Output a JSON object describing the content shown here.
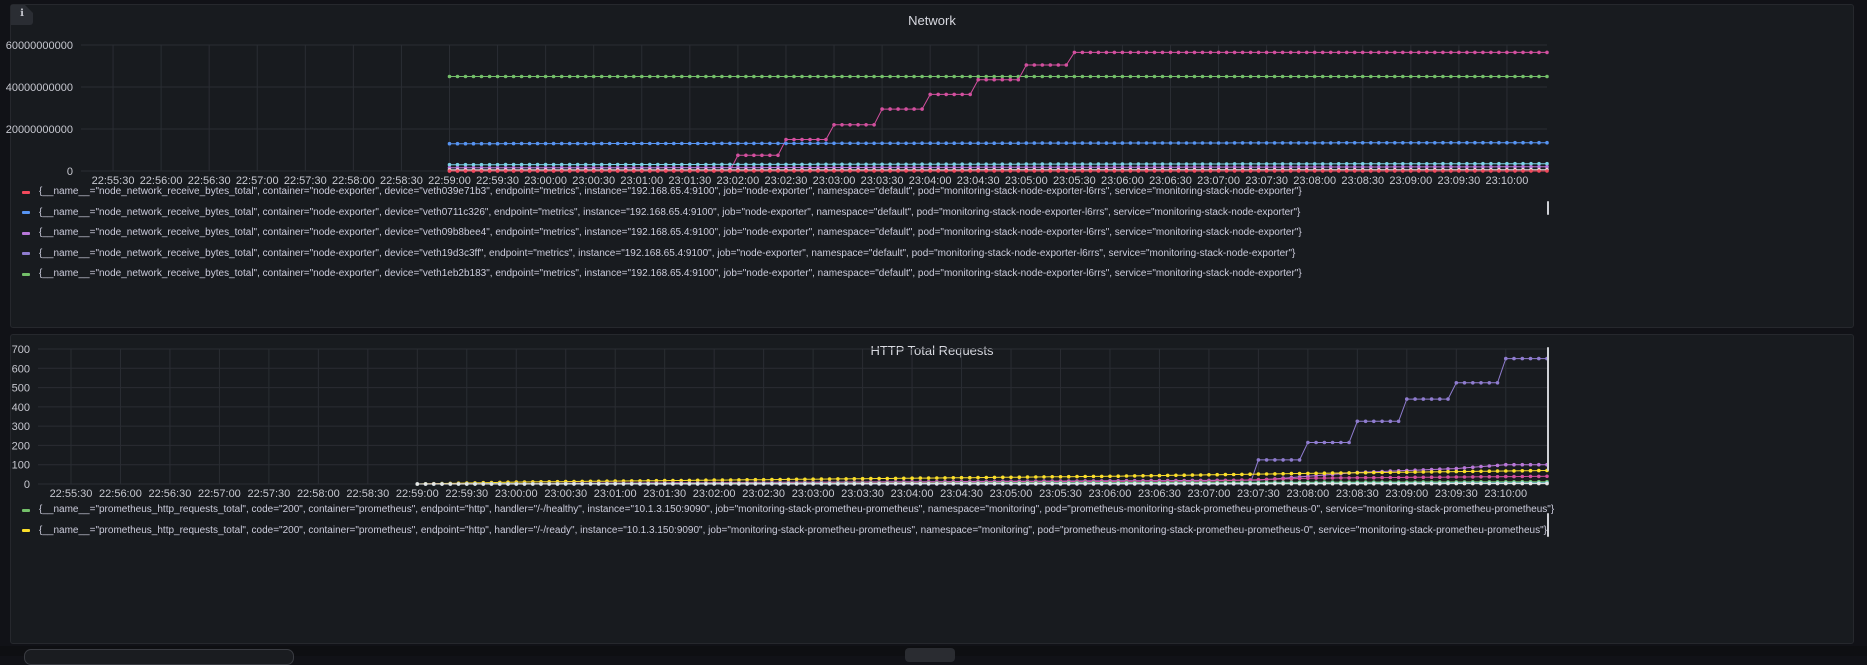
{
  "colors": {
    "bg": "#111217",
    "panel": "#181b1f",
    "grid": "#2a2d33",
    "red": "#f2495c",
    "blue": "#5794f2",
    "purple": "#b877d9",
    "violet": "#8f7ccf",
    "green": "#73bf69",
    "yellow": "#fade2a",
    "pink": "#d24f9e",
    "white": "#e6e6e6",
    "cyan": "#7ad2e6"
  },
  "info_icon": "ℹ",
  "network": {
    "title": "Network",
    "legend": [
      {
        "label": "{__name__=\"node_network_receive_bytes_total\", container=\"node-exporter\", device=\"veth039e71b3\", endpoint=\"metrics\", instance=\"192.168.65.4:9100\", job=\"node-exporter\", namespace=\"default\", pod=\"monitoring-stack-node-exporter-l6rrs\", service=\"monitoring-stack-node-exporter\"}",
        "color": "#f2495c"
      },
      {
        "label": "{__name__=\"node_network_receive_bytes_total\", container=\"node-exporter\", device=\"veth0711c326\", endpoint=\"metrics\", instance=\"192.168.65.4:9100\", job=\"node-exporter\", namespace=\"default\", pod=\"monitoring-stack-node-exporter-l6rrs\", service=\"monitoring-stack-node-exporter\"}",
        "color": "#5794f2"
      },
      {
        "label": "{__name__=\"node_network_receive_bytes_total\", container=\"node-exporter\", device=\"veth09b8bee4\", endpoint=\"metrics\", instance=\"192.168.65.4:9100\", job=\"node-exporter\", namespace=\"default\", pod=\"monitoring-stack-node-exporter-l6rrs\", service=\"monitoring-stack-node-exporter\"}",
        "color": "#b877d9"
      },
      {
        "label": "{__name__=\"node_network_receive_bytes_total\", container=\"node-exporter\", device=\"veth19d3c3ff\", endpoint=\"metrics\", instance=\"192.168.65.4:9100\", job=\"node-exporter\", namespace=\"default\", pod=\"monitoring-stack-node-exporter-l6rrs\", service=\"monitoring-stack-node-exporter\"}",
        "color": "#8f7ccf"
      },
      {
        "label": "{__name__=\"node_network_receive_bytes_total\", container=\"node-exporter\", device=\"veth1eb2b183\", endpoint=\"metrics\", instance=\"192.168.65.4:9100\", job=\"node-exporter\", namespace=\"default\", pod=\"monitoring-stack-node-exporter-l6rrs\", service=\"monitoring-stack-node-exporter\"}",
        "color": "#73bf69"
      }
    ]
  },
  "http": {
    "title": "HTTP Total Requests",
    "legend": [
      {
        "label": "{__name__=\"prometheus_http_requests_total\", code=\"200\", container=\"prometheus\", endpoint=\"http\", handler=\"/-/healthy\", instance=\"10.1.3.150:9090\", job=\"monitoring-stack-prometheu-prometheus\", namespace=\"monitoring\", pod=\"prometheus-monitoring-stack-prometheu-prometheus-0\", service=\"monitoring-stack-prometheu-prometheus\"}",
        "color": "#73bf69"
      },
      {
        "label": "{__name__=\"prometheus_http_requests_total\", code=\"200\", container=\"prometheus\", endpoint=\"http\", handler=\"/-/ready\", instance=\"10.1.3.150:9090\", job=\"monitoring-stack-prometheu-prometheus\", namespace=\"monitoring\", pod=\"prometheus-monitoring-stack-prometheu-prometheus-0\", service=\"monitoring-stack-prometheu-prometheus\"}",
        "color": "#fade2a"
      }
    ]
  },
  "chart_data": [
    {
      "type": "line",
      "title": "Network",
      "x_ticks": [
        "22:55:30",
        "22:56:00",
        "22:56:30",
        "22:57:00",
        "22:57:30",
        "22:58:00",
        "22:58:30",
        "22:59:00",
        "22:59:30",
        "23:00:00",
        "23:00:30",
        "23:01:00",
        "23:01:30",
        "23:02:00",
        "23:02:30",
        "23:03:00",
        "23:03:30",
        "23:04:00",
        "23:04:30",
        "23:05:00",
        "23:05:30",
        "23:06:00",
        "23:06:30",
        "23:07:00",
        "23:07:30",
        "23:08:00",
        "23:08:30",
        "23:09:00",
        "23:09:30",
        "23:10:00"
      ],
      "xlim": [
        "22:55:10",
        "23:10:25"
      ],
      "y_ticks": [
        "0",
        "20000000000",
        "40000000000",
        "60000000000"
      ],
      "ylim": [
        0,
        60000000000
      ],
      "grid": true,
      "legend_position": "bottom",
      "series": [
        {
          "color": "#73bf69",
          "x": [
            "22:59:00",
            "23:10:25"
          ],
          "y": [
            45000000000,
            45000000000
          ]
        },
        {
          "color": "#d24f9e",
          "x": [
            "22:59:00",
            "23:01:55",
            "23:02:00",
            "23:02:25",
            "23:02:30",
            "23:02:55",
            "23:03:00",
            "23:03:25",
            "23:03:30",
            "23:03:55",
            "23:04:00",
            "23:04:25",
            "23:04:30",
            "23:04:55",
            "23:05:00",
            "23:05:25",
            "23:05:30",
            "23:10:25"
          ],
          "y": [
            0,
            0,
            7500000000,
            7500000000,
            15000000000,
            15000000000,
            22000000000,
            22000000000,
            29500000000,
            29500000000,
            36500000000,
            36500000000,
            43500000000,
            43500000000,
            50500000000,
            50500000000,
            56500000000,
            56500000000
          ]
        },
        {
          "color": "#5794f2",
          "x": [
            "22:59:00",
            "23:10:25"
          ],
          "y": [
            13000000000,
            13500000000
          ]
        },
        {
          "color": "#7ad2e6",
          "x": [
            "22:59:00",
            "23:10:25"
          ],
          "y": [
            3000000000,
            3500000000
          ]
        },
        {
          "color": "#b877d9",
          "x": [
            "22:59:00",
            "23:10:25"
          ],
          "y": [
            1500000000,
            2000000000
          ]
        },
        {
          "color": "#e6e6e6",
          "x": [
            "22:59:00",
            "23:10:25"
          ],
          "y": [
            500000000,
            600000000
          ]
        },
        {
          "color": "#f2495c",
          "x": [
            "22:59:00",
            "23:10:25"
          ],
          "y": [
            0,
            0
          ]
        }
      ]
    },
    {
      "type": "line",
      "title": "HTTP Total Requests",
      "x_ticks": [
        "22:55:30",
        "22:56:00",
        "22:56:30",
        "22:57:00",
        "22:57:30",
        "22:58:00",
        "22:58:30",
        "22:59:00",
        "22:59:30",
        "23:00:00",
        "23:00:30",
        "23:01:00",
        "23:01:30",
        "23:02:00",
        "23:02:30",
        "23:03:00",
        "23:03:30",
        "23:04:00",
        "23:04:30",
        "23:05:00",
        "23:05:30",
        "23:06:00",
        "23:06:30",
        "23:07:00",
        "23:07:30",
        "23:08:00",
        "23:08:30",
        "23:09:00",
        "23:09:30",
        "23:10:00"
      ],
      "xlim": [
        "22:55:10",
        "23:10:25"
      ],
      "y_ticks": [
        "0",
        "100",
        "200",
        "300",
        "400",
        "500",
        "600",
        "700"
      ],
      "ylim": [
        0,
        700
      ],
      "grid": true,
      "legend_position": "bottom",
      "series": [
        {
          "color": "#8f7ccf",
          "x": [
            "22:59:00",
            "23:07:25",
            "23:07:30",
            "23:07:55",
            "23:08:00",
            "23:08:25",
            "23:08:30",
            "23:08:55",
            "23:09:00",
            "23:09:25",
            "23:09:30",
            "23:09:55",
            "23:10:00",
            "23:10:25"
          ],
          "y": [
            0,
            0,
            125,
            125,
            215,
            215,
            325,
            325,
            440,
            440,
            525,
            525,
            650,
            650
          ]
        },
        {
          "color": "#b877d9",
          "x": [
            "22:59:00",
            "23:07:30",
            "23:08:30",
            "23:09:30",
            "23:10:00",
            "23:10:25"
          ],
          "y": [
            0,
            20,
            60,
            80,
            100,
            100
          ]
        },
        {
          "color": "#fade2a",
          "x": [
            "22:59:00",
            "23:00:00",
            "23:03:00",
            "23:06:00",
            "23:08:00",
            "23:10:25"
          ],
          "y": [
            0,
            10,
            25,
            40,
            55,
            70
          ]
        },
        {
          "color": "#d24f9e",
          "x": [
            "22:59:00",
            "23:07:00",
            "23:08:00",
            "23:10:25"
          ],
          "y": [
            0,
            15,
            30,
            40
          ]
        },
        {
          "color": "#73bf69",
          "x": [
            "22:59:00",
            "23:10:25"
          ],
          "y": [
            0,
            12
          ]
        },
        {
          "color": "#7ad2e6",
          "x": [
            "22:59:00",
            "23:10:25"
          ],
          "y": [
            0,
            6
          ]
        },
        {
          "color": "#e6e6e6",
          "x": [
            "22:59:00",
            "23:10:25"
          ],
          "y": [
            0,
            2
          ]
        }
      ]
    }
  ]
}
